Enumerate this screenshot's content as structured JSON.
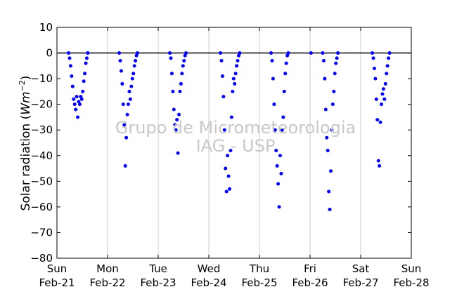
{
  "chart_data": {
    "type": "scatter",
    "title": "",
    "xlabel": "",
    "ylabel_main": "Solar radiation (",
    "ylabel_math": "Wm",
    "ylabel_sup": "−2",
    "ylabel_close": ")",
    "ylim": [
      -80,
      10
    ],
    "yticks": [
      10,
      0,
      -10,
      -20,
      -30,
      -40,
      -50,
      -60,
      -70,
      -80
    ],
    "ytick_labels": [
      "10",
      "0",
      "−10",
      "−20",
      "−30",
      "−40",
      "−50",
      "−60",
      "−70",
      "−80"
    ],
    "xlim": [
      "2016-02-21",
      "2016-02-28"
    ],
    "xticks": [
      {
        "day": "Sun",
        "date": "Feb-21"
      },
      {
        "day": "Mon",
        "date": "Feb-22"
      },
      {
        "day": "Tue",
        "date": "Feb-23"
      },
      {
        "day": "Wed",
        "date": "Feb-24"
      },
      {
        "day": "Thu",
        "date": "Feb-25"
      },
      {
        "day": "Fri",
        "date": "Feb-26"
      },
      {
        "day": "Sat",
        "date": "Feb-27"
      },
      {
        "day": "Sun",
        "date": "Feb-28"
      }
    ],
    "grid": "vertical",
    "zero_line": true,
    "marker_color": "#0000ff",
    "series": [
      {
        "values": [
          {
            "day": "Feb-21",
            "points": [
              [
                0.23,
                0
              ],
              [
                0.25,
                -2
              ],
              [
                0.27,
                -5
              ],
              [
                0.29,
                -9
              ],
              [
                0.31,
                -13
              ],
              [
                0.33,
                -18
              ],
              [
                0.35,
                -20
              ],
              [
                0.37,
                -22
              ],
              [
                0.39,
                -17
              ],
              [
                0.41,
                -25
              ],
              [
                0.43,
                -19
              ],
              [
                0.45,
                -20
              ],
              [
                0.47,
                -17
              ],
              [
                0.49,
                -18
              ],
              [
                0.51,
                -15
              ],
              [
                0.53,
                -11
              ],
              [
                0.55,
                -8
              ],
              [
                0.57,
                -4
              ],
              [
                0.59,
                -2
              ],
              [
                0.61,
                0
              ]
            ]
          },
          {
            "day": "Feb-22",
            "points": [
              [
                0.23,
                0
              ],
              [
                0.25,
                -3
              ],
              [
                0.27,
                -7
              ],
              [
                0.29,
                -12
              ],
              [
                0.31,
                -20
              ],
              [
                0.33,
                -28
              ],
              [
                0.35,
                -44
              ],
              [
                0.37,
                -33
              ],
              [
                0.39,
                -24
              ],
              [
                0.41,
                -20
              ],
              [
                0.43,
                -15
              ],
              [
                0.45,
                -18
              ],
              [
                0.47,
                -13
              ],
              [
                0.49,
                -10
              ],
              [
                0.51,
                -8
              ],
              [
                0.53,
                -5
              ],
              [
                0.55,
                -3
              ],
              [
                0.57,
                -1
              ],
              [
                0.59,
                0
              ]
            ]
          },
          {
            "day": "Feb-23",
            "points": [
              [
                0.23,
                0
              ],
              [
                0.25,
                -2
              ],
              [
                0.27,
                -8
              ],
              [
                0.29,
                -15
              ],
              [
                0.31,
                -22
              ],
              [
                0.33,
                -28
              ],
              [
                0.35,
                -30
              ],
              [
                0.37,
                -26
              ],
              [
                0.39,
                -39
              ],
              [
                0.41,
                -24
              ],
              [
                0.43,
                -15
              ],
              [
                0.45,
                -12
              ],
              [
                0.47,
                -8
              ],
              [
                0.49,
                -5
              ],
              [
                0.51,
                -3
              ],
              [
                0.53,
                -1
              ],
              [
                0.55,
                0
              ]
            ]
          },
          {
            "day": "Feb-24",
            "points": [
              [
                0.23,
                0
              ],
              [
                0.25,
                -3
              ],
              [
                0.27,
                -9
              ],
              [
                0.29,
                -17
              ],
              [
                0.31,
                -30
              ],
              [
                0.33,
                -45
              ],
              [
                0.35,
                -54
              ],
              [
                0.37,
                -40
              ],
              [
                0.39,
                -48
              ],
              [
                0.41,
                -53
              ],
              [
                0.43,
                -38
              ],
              [
                0.45,
                -25
              ],
              [
                0.47,
                -15
              ],
              [
                0.49,
                -10
              ],
              [
                0.51,
                -12
              ],
              [
                0.53,
                -8
              ],
              [
                0.55,
                -5
              ],
              [
                0.57,
                -3
              ],
              [
                0.59,
                -1
              ],
              [
                0.61,
                0
              ]
            ]
          },
          {
            "day": "Feb-25",
            "points": [
              [
                0.23,
                0
              ],
              [
                0.25,
                -3
              ],
              [
                0.27,
                -10
              ],
              [
                0.29,
                -20
              ],
              [
                0.31,
                -30
              ],
              [
                0.33,
                -38
              ],
              [
                0.35,
                -44
              ],
              [
                0.37,
                -51
              ],
              [
                0.39,
                -60
              ],
              [
                0.41,
                -40
              ],
              [
                0.43,
                -47
              ],
              [
                0.45,
                -30
              ],
              [
                0.47,
                -25
              ],
              [
                0.49,
                -15
              ],
              [
                0.51,
                -8
              ],
              [
                0.53,
                -4
              ],
              [
                0.55,
                -1
              ],
              [
                0.57,
                0
              ]
            ]
          },
          {
            "day": "Feb-26",
            "points": [
              [
                0.02,
                0
              ],
              [
                0.25,
                0
              ],
              [
                0.27,
                -3
              ],
              [
                0.29,
                -10
              ],
              [
                0.31,
                -22
              ],
              [
                0.33,
                -33
              ],
              [
                0.35,
                -38
              ],
              [
                0.37,
                -54
              ],
              [
                0.39,
                -61
              ],
              [
                0.41,
                -46
              ],
              [
                0.43,
                -30
              ],
              [
                0.45,
                -20
              ],
              [
                0.47,
                -15
              ],
              [
                0.49,
                -8
              ],
              [
                0.51,
                -4
              ],
              [
                0.53,
                -2
              ],
              [
                0.55,
                0
              ]
            ]
          },
          {
            "day": "Feb-27",
            "points": [
              [
                0.23,
                0
              ],
              [
                0.25,
                -2
              ],
              [
                0.27,
                -6
              ],
              [
                0.29,
                -10
              ],
              [
                0.31,
                -18
              ],
              [
                0.33,
                -26
              ],
              [
                0.35,
                -42
              ],
              [
                0.37,
                -44
              ],
              [
                0.39,
                -27
              ],
              [
                0.41,
                -20
              ],
              [
                0.43,
                -16
              ],
              [
                0.45,
                -14
              ],
              [
                0.47,
                -18
              ],
              [
                0.49,
                -12
              ],
              [
                0.51,
                -8
              ],
              [
                0.53,
                -5
              ],
              [
                0.55,
                -2
              ],
              [
                0.57,
                0
              ]
            ]
          }
        ]
      }
    ]
  },
  "watermark": {
    "line1": "Grupo de Micrometeorologia",
    "line2": "IAG - USP"
  }
}
